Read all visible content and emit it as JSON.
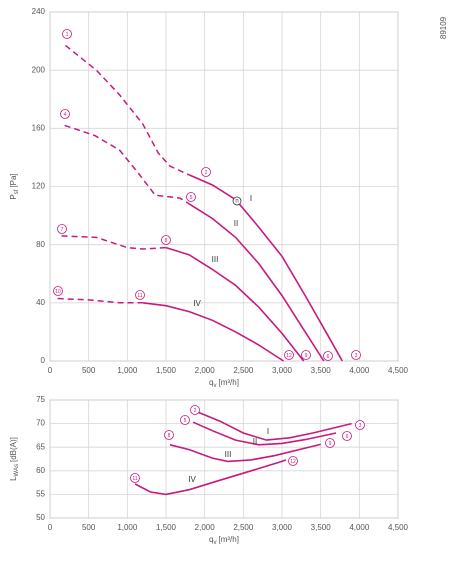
{
  "chart_data": [
    {
      "type": "line",
      "code": "89109",
      "xlabel": {
        "symbol": "q",
        "subscript": "v",
        "unit": "[m³/h]"
      },
      "ylabel": {
        "symbol": "P",
        "subscript": "sf",
        "unit": "[Pa]"
      },
      "xlim": [
        0,
        4500
      ],
      "ylim": [
        0,
        240
      ],
      "xticks": [
        0,
        500,
        {
          "value": 1000,
          "label": "1,000"
        },
        {
          "value": 1500,
          "label": "1,500"
        },
        {
          "value": 2000,
          "label": "2,000"
        },
        {
          "value": 2500,
          "label": "2,500"
        },
        {
          "value": 3000,
          "label": "3,000"
        },
        {
          "value": 3500,
          "label": "3,500"
        },
        {
          "value": 4000,
          "label": "4,000"
        },
        {
          "value": 4500,
          "label": "4,500"
        }
      ],
      "yticks": [
        0,
        40,
        80,
        120,
        160,
        200,
        240
      ],
      "grid": true,
      "series": [
        {
          "name": "I",
          "color": "#c8197f",
          "x": [
            1800,
            2100,
            2400,
            2700,
            3000,
            3300,
            3600,
            3780
          ],
          "values": [
            128,
            121,
            111,
            92,
            72,
            45,
            17,
            0
          ],
          "extension_x": [
            200,
            600,
            900,
            1200,
            1400,
            1550,
            1800
          ],
          "extension_values": [
            217,
            200,
            183,
            163,
            143,
            134,
            128
          ]
        },
        {
          "name": "II",
          "color": "#c8197f",
          "x": [
            1800,
            2100,
            2400,
            2700,
            3000,
            3300,
            3540
          ],
          "values": [
            108,
            98,
            85,
            67,
            45,
            20,
            0
          ],
          "extension_x": [
            190,
            580,
            900,
            1160,
            1360,
            1680,
            1800
          ],
          "extension_values": [
            162,
            155,
            145,
            128,
            114,
            112,
            108
          ]
        },
        {
          "name": "III",
          "color": "#c8197f",
          "x": [
            1500,
            1800,
            2100,
            2400,
            2700,
            3000,
            3280
          ],
          "values": [
            78,
            73,
            63,
            52,
            37,
            19,
            0
          ],
          "extension_x": [
            150,
            600,
            1000,
            1200,
            1500
          ],
          "extension_values": [
            86,
            85,
            78,
            77,
            78
          ]
        },
        {
          "name": "IV",
          "color": "#c8197f",
          "x": [
            1200,
            1500,
            1800,
            2100,
            2400,
            2700,
            3020
          ],
          "values": [
            40,
            38,
            34,
            28,
            20,
            11,
            0
          ],
          "extension_x": [
            100,
            500,
            900,
            1200
          ],
          "extension_values": [
            43,
            42,
            40,
            40
          ]
        }
      ],
      "annotations": [
        "1",
        "2",
        "3",
        "4",
        "5",
        "6",
        "7",
        "8",
        "9",
        "10",
        "11",
        "12"
      ],
      "marker_label": "n"
    },
    {
      "type": "line",
      "xlabel": {
        "symbol": "q",
        "subscript": "v",
        "unit": "[m³/h]"
      },
      "ylabel": {
        "symbol": "L",
        "subscript": "WAs",
        "unit": "[dB(A)]"
      },
      "xlim": [
        0,
        4500
      ],
      "ylim": [
        50,
        75
      ],
      "xticks": [
        0,
        500,
        {
          "value": 1000,
          "label": "1,000"
        },
        {
          "value": 1500,
          "label": "1,500"
        },
        {
          "value": 2000,
          "label": "2,000"
        },
        {
          "value": 2500,
          "label": "2,500"
        },
        {
          "value": 3000,
          "label": "3,000"
        },
        {
          "value": 3500,
          "label": "3,500"
        },
        {
          "value": 4000,
          "label": "4,000"
        },
        {
          "value": 4500,
          "label": "4,500"
        }
      ],
      "yticks": [
        50,
        55,
        60,
        65,
        70,
        75
      ],
      "grid": true,
      "series": [
        {
          "name": "I",
          "color": "#c8197f",
          "x": [
            1900,
            2200,
            2500,
            2800,
            3100,
            3400,
            3900
          ],
          "values": [
            72.5,
            70.5,
            68,
            66.5,
            67,
            68,
            70
          ]
        },
        {
          "name": "II",
          "color": "#c8197f",
          "x": [
            1850,
            2100,
            2400,
            2700,
            3000,
            3300,
            3700
          ],
          "values": [
            70.3,
            68.5,
            66.5,
            65.5,
            65.8,
            66.6,
            68
          ]
        },
        {
          "name": "III",
          "color": "#c8197f",
          "x": [
            1550,
            1800,
            2100,
            2300,
            2600,
            2900,
            3300,
            3500
          ],
          "values": [
            65.5,
            64.5,
            62.7,
            62,
            62.3,
            63.2,
            64.8,
            65.6
          ]
        },
        {
          "name": "IV",
          "color": "#c8197f",
          "x": [
            1100,
            1300,
            1500,
            1800,
            2200,
            2600,
            3000,
            3050
          ],
          "values": [
            57.2,
            55.5,
            55,
            56,
            58,
            60,
            62,
            62.3
          ]
        }
      ],
      "annotations": [
        "2",
        "3",
        "5",
        "6",
        "8",
        "9",
        "11",
        "12"
      ]
    }
  ]
}
